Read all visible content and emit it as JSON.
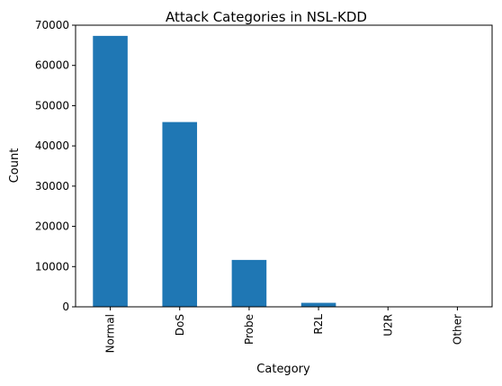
{
  "chart_data": {
    "type": "bar",
    "title": "Attack Categories in NSL-KDD",
    "xlabel": "Category",
    "ylabel": "Count",
    "categories": [
      "Normal",
      "DoS",
      "Probe",
      "R2L",
      "U2R",
      "Other"
    ],
    "values": [
      67343,
      45927,
      11656,
      995,
      52,
      0
    ],
    "ylim": [
      0,
      70000
    ],
    "yticks": [
      0,
      10000,
      20000,
      30000,
      40000,
      50000,
      60000,
      70000
    ],
    "ytick_labels": [
      "0",
      "10000",
      "20000",
      "30000",
      "40000",
      "50000",
      "60000",
      "70000"
    ],
    "grid": false,
    "legend": "none",
    "bar_color": "#1f77b4"
  }
}
